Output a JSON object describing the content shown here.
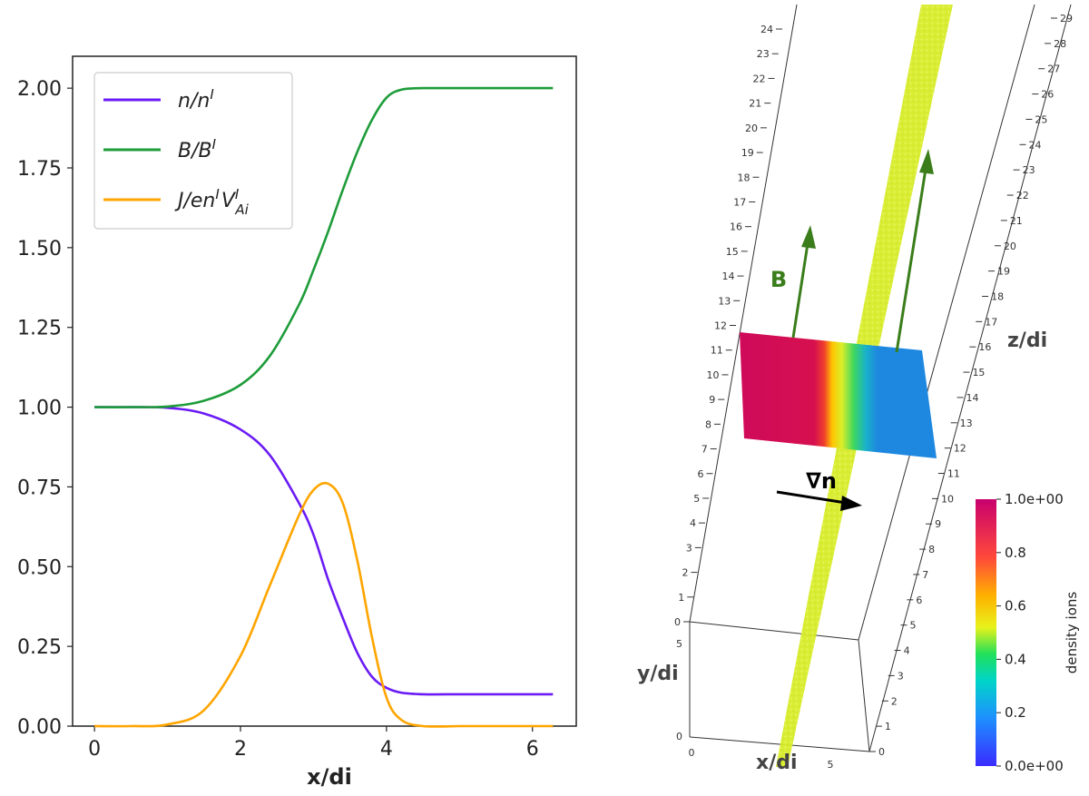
{
  "chart_data": [
    {
      "type": "line",
      "title": "",
      "xlabel": "x/di",
      "ylabel": "",
      "xlim": [
        -0.3,
        6.6
      ],
      "ylim": [
        0,
        2.1
      ],
      "xticks": [
        0,
        2,
        4,
        6
      ],
      "yticks": [
        0.0,
        0.25,
        0.5,
        0.75,
        1.0,
        1.25,
        1.5,
        1.75,
        2.0
      ],
      "xtick_labels": [
        "0",
        "2",
        "4",
        "6"
      ],
      "ytick_labels": [
        "0.00",
        "0.25",
        "0.50",
        "0.75",
        "1.00",
        "1.25",
        "1.50",
        "1.75",
        "2.00"
      ],
      "legend_position": "top-left",
      "series": [
        {
          "name": "n/n^I",
          "legend_main": "n/n",
          "legend_sup": "I",
          "legend_tail": "",
          "color": "#6a1bf5",
          "x": [
            0,
            0.5,
            1.0,
            1.5,
            2.0,
            2.4,
            2.8,
            3.0,
            3.2,
            3.4,
            3.6,
            3.8,
            4.0,
            4.2,
            4.5,
            5.0,
            5.5,
            6.28
          ],
          "values": [
            1.0,
            1.0,
            0.998,
            0.98,
            0.93,
            0.85,
            0.7,
            0.6,
            0.46,
            0.34,
            0.23,
            0.155,
            0.12,
            0.105,
            0.1,
            0.1,
            0.1,
            0.1
          ]
        },
        {
          "name": "B/B^I",
          "legend_main": "B/B",
          "legend_sup": "I",
          "legend_tail": "",
          "color": "#1e9c3a",
          "x": [
            0,
            0.5,
            1.0,
            1.5,
            2.0,
            2.4,
            2.8,
            3.0,
            3.2,
            3.4,
            3.6,
            3.8,
            4.0,
            4.2,
            4.5,
            5.0,
            5.5,
            6.28
          ],
          "values": [
            1.0,
            1.0,
            1.002,
            1.02,
            1.07,
            1.16,
            1.32,
            1.43,
            1.55,
            1.68,
            1.8,
            1.9,
            1.97,
            1.995,
            2.0,
            2.0,
            2.0,
            2.0
          ]
        },
        {
          "name": "J/en^I V^I_Ai",
          "legend_main": "J/en",
          "legend_sup": "I",
          "legend_mid": "V",
          "legend_sup2": "I",
          "legend_sub": "Ai",
          "color": "#ffa500",
          "x": [
            0,
            0.5,
            1.0,
            1.5,
            2.0,
            2.4,
            2.8,
            3.0,
            3.2,
            3.4,
            3.6,
            3.8,
            4.0,
            4.2,
            4.5,
            5.0,
            5.5,
            6.28
          ],
          "values": [
            0.0,
            0.0,
            0.005,
            0.05,
            0.22,
            0.44,
            0.66,
            0.74,
            0.76,
            0.7,
            0.52,
            0.28,
            0.09,
            0.02,
            0.0,
            0.0,
            0.0,
            0.0
          ]
        }
      ]
    },
    {
      "type": "heatmap",
      "title": "",
      "colorbar_label": "density ions",
      "colorbar_ticks": [
        "1.0e+00",
        "0.8",
        "0.6",
        "0.4",
        "0.2",
        "0.0e+00"
      ],
      "colorbar_range": [
        0.0,
        1.0
      ],
      "axis_labels": {
        "x": "x/di",
        "y": "y/di",
        "z": "z/di"
      },
      "annotations": {
        "field": "B",
        "gradient": "∇n"
      },
      "left_axis_ticks": [
        "0",
        "1",
        "2",
        "3",
        "4",
        "5",
        "6",
        "7",
        "8",
        "9",
        "10",
        "11",
        "12",
        "13",
        "14",
        "15",
        "16",
        "17",
        "18",
        "19",
        "20",
        "21",
        "22",
        "23",
        "24"
      ],
      "right_axis_ticks": [
        "0",
        "1",
        "2",
        "3",
        "4",
        "5",
        "6",
        "7",
        "8",
        "9",
        "10",
        "11",
        "12",
        "13",
        "14",
        "15",
        "16",
        "17",
        "18",
        "19",
        "20",
        "21",
        "22",
        "23",
        "24",
        "25",
        "26",
        "27",
        "28",
        "29"
      ],
      "y_axis_ticks": [
        "0",
        "5"
      ],
      "x_axis_ticks": [
        "0",
        "5"
      ],
      "slice_density": [
        1.0,
        1.0,
        1.0,
        1.0,
        0.95,
        0.75,
        0.55,
        0.4,
        0.22,
        0.12,
        0.12,
        0.12,
        0.12,
        0.12
      ]
    }
  ]
}
